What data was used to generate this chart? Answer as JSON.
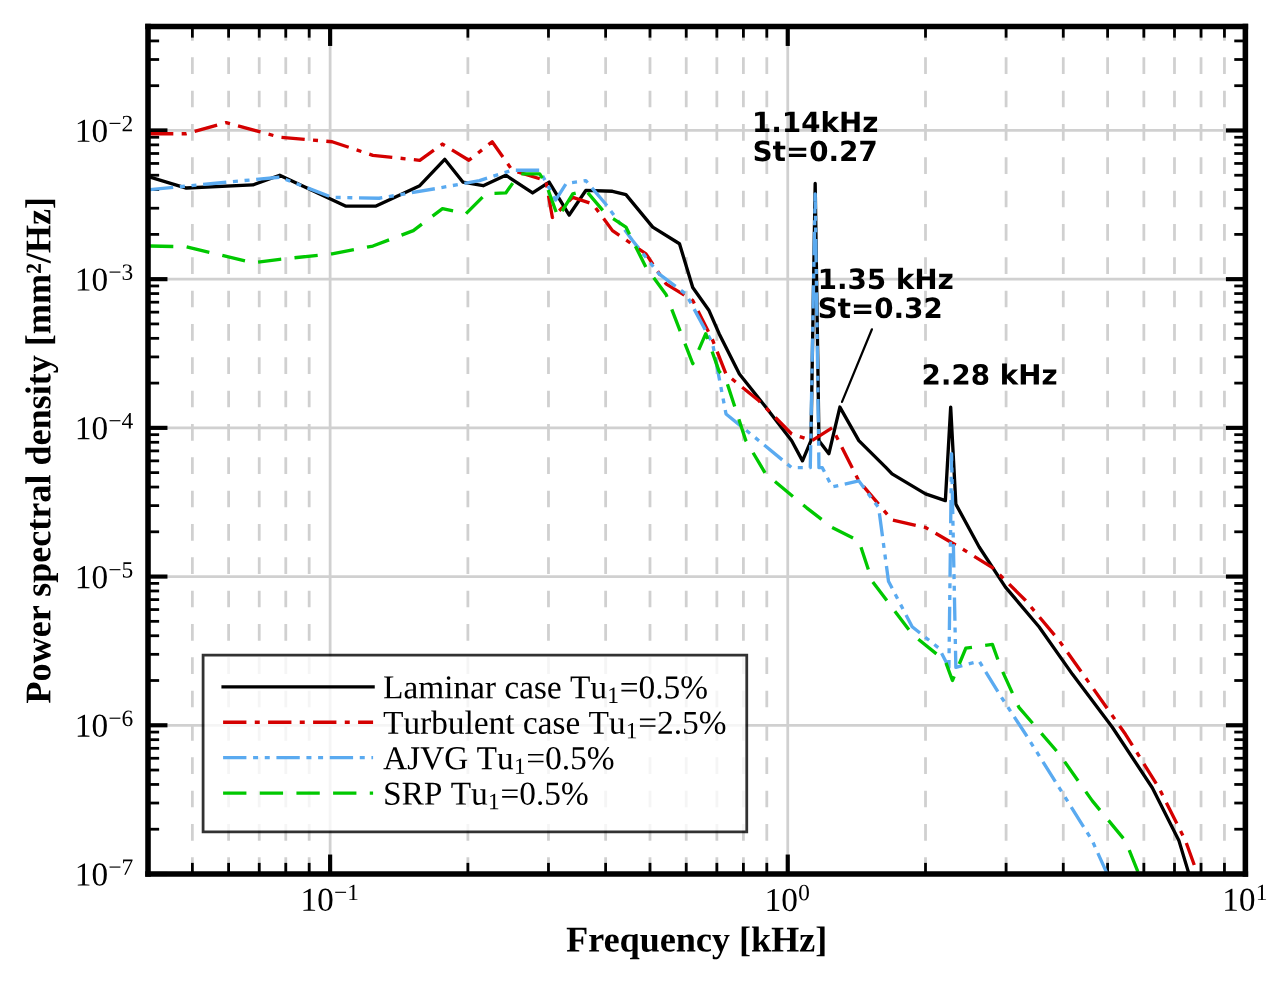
{
  "chart_data": {
    "type": "line",
    "xlabel": "Frequency [kHz]",
    "ylabel": "Power spectral density [mm²/Hz]",
    "log": "xy",
    "xlim": [
      0.04,
      10
    ],
    "ylim": [
      1e-07,
      0.05
    ],
    "xticks": [
      {
        "value": 0.1,
        "label": "10$^{−1}$"
      },
      {
        "value": 1,
        "label": "10$^{0}$"
      },
      {
        "value": 10,
        "label": "10$^{1}$"
      }
    ],
    "yticks": [
      {
        "value": 1e-07,
        "label": "10$^{−7}$"
      },
      {
        "value": 1e-06,
        "label": "10$^{−6}$"
      },
      {
        "value": 1e-05,
        "label": "10$^{−5}$"
      },
      {
        "value": 0.0001,
        "label": "10$^{−4}$"
      },
      {
        "value": 0.001,
        "label": "10$^{−3}$"
      },
      {
        "value": 0.01,
        "label": "10$^{−2}$"
      }
    ],
    "grid": true,
    "legend": "bottom left",
    "annotations": [
      {
        "text": "1.14kHz\nSt=0.27",
        "x": 1.148,
        "y": 0.0044
      },
      {
        "text": "1.35 kHz\nSt=0.32",
        "x": 1.3,
        "y": 0.000138
      },
      {
        "text": "2.28 kHz",
        "x": 2.27,
        "y": 0.000138
      }
    ],
    "series": [
      {
        "name": "Laminar case Tu$_{1}$=0.5%",
        "color": "#000000",
        "line_style": "solid",
        "x": [
          0.0404,
          0.0485,
          0.0678,
          0.0776,
          0.108,
          0.126,
          0.157,
          0.178,
          0.195,
          0.216,
          0.242,
          0.277,
          0.301,
          0.333,
          0.362,
          0.414,
          0.443,
          0.507,
          0.58,
          0.62,
          0.673,
          0.708,
          0.784,
          0.895,
          1.02,
          1.077,
          1.124,
          1.148,
          1.17,
          1.23,
          1.3,
          1.43,
          1.64,
          1.69,
          2.0,
          2.21,
          2.27,
          2.33,
          2.62,
          2.99,
          3.54,
          4.19,
          5.12,
          6.26,
          7.16,
          7.53
        ],
        "values": [
          0.00485,
          0.0041,
          0.0043,
          0.005,
          0.0031,
          0.0031,
          0.00425,
          0.0064,
          0.0045,
          0.00425,
          0.005,
          0.0038,
          0.0045,
          0.0027,
          0.00395,
          0.0039,
          0.0037,
          0.00224,
          0.00173,
          0.00088,
          0.000615,
          0.00043,
          0.00023,
          0.000138,
          8.2e-05,
          6e-05,
          8.2e-05,
          0.0044,
          8.2e-05,
          6.7e-05,
          0.000138,
          8.2e-05,
          5.4e-05,
          4.9e-05,
          3.6e-05,
          3.24e-05,
          0.000138,
          3.07e-05,
          1.58e-05,
          8.5e-06,
          4.6e-06,
          2.2e-06,
          9.7e-07,
          3.8e-07,
          1.67e-07,
          1e-07
        ]
      },
      {
        "name": "Turbulent case Tu$_{1}$=2.5%",
        "color": "#d40000",
        "line_style": "dashdot",
        "x": [
          0.0404,
          0.0485,
          0.0593,
          0.0776,
          0.101,
          0.124,
          0.157,
          0.176,
          0.201,
          0.226,
          0.25,
          0.296,
          0.306,
          0.339,
          0.375,
          0.414,
          0.49,
          0.542,
          0.62,
          0.685,
          0.733,
          0.865,
          1.02,
          1.13,
          1.25,
          1.43,
          1.69,
          2.0,
          2.37,
          2.8,
          3.31,
          3.92,
          4.63,
          5.47,
          6.47,
          7.4,
          7.86
        ],
        "values": [
          0.0095,
          0.0095,
          0.0113,
          0.009,
          0.0084,
          0.0068,
          0.0063,
          0.0081,
          0.0063,
          0.0084,
          0.0054,
          0.0046,
          0.0026,
          0.00355,
          0.0032,
          0.00212,
          0.00148,
          0.00093,
          0.00072,
          0.00039,
          0.00023,
          0.000152,
          9.1e-05,
          8.2e-05,
          0.0001,
          4.4e-05,
          2.4e-05,
          2.14e-05,
          1.58e-05,
          1.15e-05,
          6.9e-06,
          3.7e-06,
          1.8e-06,
          8.7e-07,
          3.8e-07,
          1.67e-07,
          1e-07
        ]
      },
      {
        "name": "AJVG Tu$_{1}$=0.5%",
        "color": "#5aaaf0",
        "line_style": "dashdotdot",
        "x": [
          0.0404,
          0.0555,
          0.0776,
          0.101,
          0.128,
          0.173,
          0.212,
          0.25,
          0.287,
          0.311,
          0.328,
          0.362,
          0.4,
          0.458,
          0.524,
          0.6,
          0.685,
          0.733,
          0.865,
          1.02,
          1.12,
          1.148,
          1.17,
          1.19,
          1.25,
          1.43,
          1.58,
          1.66,
          1.87,
          2.14,
          2.25,
          2.28,
          2.33,
          2.62,
          2.9,
          3.31,
          3.92,
          4.63,
          4.99
        ],
        "values": [
          0.004,
          0.0044,
          0.00485,
          0.00355,
          0.0035,
          0.0041,
          0.0046,
          0.0054,
          0.0054,
          0.0034,
          0.0044,
          0.0046,
          0.0032,
          0.00182,
          0.00108,
          0.00079,
          0.00037,
          0.000124,
          8.2e-05,
          5.4e-05,
          5.4e-05,
          0.00375,
          5.4e-05,
          5.4e-05,
          4e-05,
          4.4e-05,
          2.9e-05,
          9.3e-06,
          4.6e-06,
          3.3e-06,
          2.45e-06,
          6.7e-05,
          2.45e-06,
          2.7e-06,
          1.62e-06,
          8.7e-07,
          3.8e-07,
          1.67e-07,
          1e-07
        ]
      },
      {
        "name": "SRP Tu$_{1}$=0.5%",
        "color": "#00c800",
        "line_style": "dashed",
        "x": [
          0.0404,
          0.0485,
          0.0678,
          0.0776,
          0.101,
          0.124,
          0.152,
          0.176,
          0.198,
          0.219,
          0.242,
          0.259,
          0.287,
          0.296,
          0.315,
          0.339,
          0.362,
          0.4,
          0.443,
          0.49,
          0.542,
          0.62,
          0.662,
          0.708,
          0.733,
          0.81,
          0.895,
          1.1,
          1.25,
          1.43,
          1.53,
          1.87,
          2.21,
          2.29,
          2.45,
          2.8,
          2.92,
          3.2,
          3.92,
          4.63,
          5.47,
          5.85
        ],
        "values": [
          0.00167,
          0.00165,
          0.00129,
          0.00136,
          0.00148,
          0.00167,
          0.00212,
          0.00298,
          0.00275,
          0.00375,
          0.0038,
          0.0051,
          0.0051,
          0.0044,
          0.0026,
          0.00375,
          0.00395,
          0.00275,
          0.00224,
          0.0012,
          0.00079,
          0.00027,
          0.00043,
          0.00024,
          0.00021,
          8.2e-05,
          4.9e-05,
          2.9e-05,
          2.14e-05,
          1.74e-05,
          9.3e-06,
          4.1e-06,
          2.7e-06,
          2e-06,
          3.3e-06,
          3.5e-06,
          2.45e-06,
          1.32e-06,
          6.4e-07,
          3.1e-07,
          1.67e-07,
          1e-07
        ]
      }
    ]
  }
}
